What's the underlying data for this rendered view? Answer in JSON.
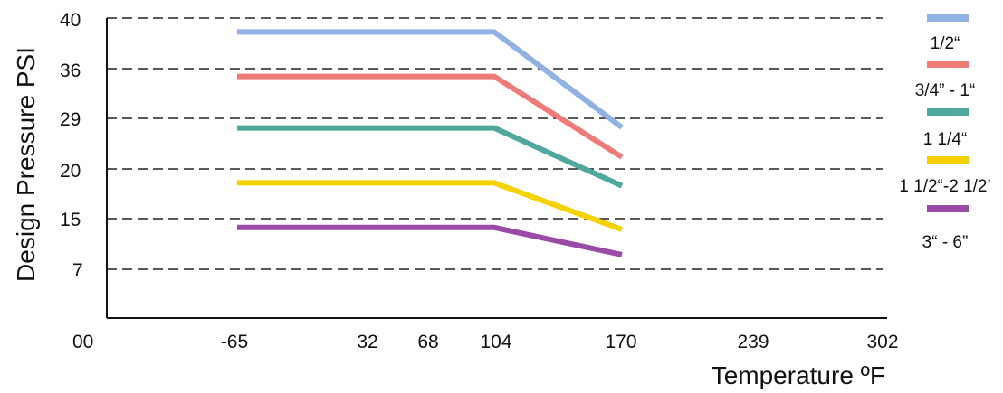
{
  "chart_data": {
    "type": "line",
    "xlabel": "Temperature ºF",
    "ylabel": "Design Pressure PSI",
    "x_ticks": [
      "00",
      "-65",
      "32",
      "68",
      "104",
      "170",
      "239",
      "302"
    ],
    "y_ticks": [
      "40",
      "36",
      "29",
      "20",
      "15",
      "7"
    ],
    "grid": "horizontal dashed",
    "legend_position": "right",
    "x": [
      "-65",
      "104",
      "170"
    ],
    "series": [
      {
        "name": "1/2“",
        "color": "#8fb1e3",
        "values": [
          38.9,
          38.9,
          27.4
        ]
      },
      {
        "name": "3/4” - 1“",
        "color": "#ee7b77",
        "values": [
          34.9,
          34.9,
          22.1
        ]
      },
      {
        "name": "1 1/4“",
        "color": "#4fa79e",
        "values": [
          27.3,
          27.3,
          18.3
        ]
      },
      {
        "name": "1 1/2“-2 1/2’",
        "color": "#f4d200",
        "values": [
          18.6,
          18.6,
          13.3
        ]
      },
      {
        "name": "3“ - 6”",
        "color": "#9a4ba6",
        "values": [
          13.6,
          13.6,
          9.3
        ]
      }
    ]
  }
}
